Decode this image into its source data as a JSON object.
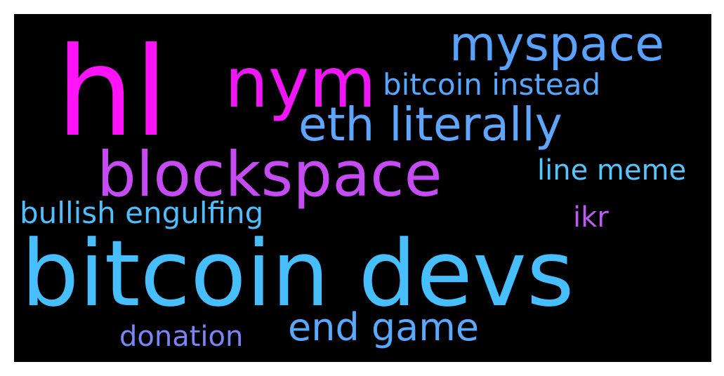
{
  "background_color": "#000000",
  "words": [
    {
      "key": "hl",
      "text": "hl",
      "color": "#ff13f7"
    },
    {
      "key": "nym",
      "text": "nym",
      "color": "#f017f7"
    },
    {
      "key": "myspace",
      "text": "myspace",
      "color": "#5aa2ff"
    },
    {
      "key": "bitcoin_instead",
      "text": "bitcoin instead",
      "color": "#57a6ff"
    },
    {
      "key": "eth_literally",
      "text": "eth literally",
      "color": "#5ea6ff"
    },
    {
      "key": "blockspace",
      "text": "blockspace",
      "color": "#c54bf2"
    },
    {
      "key": "line_meme",
      "text": "line meme",
      "color": "#54c6ff"
    },
    {
      "key": "bullish_engulfing",
      "text": "bullish engulfing",
      "color": "#4fbfff"
    },
    {
      "key": "ikr",
      "text": "ikr",
      "color": "#b95cf0"
    },
    {
      "key": "bitcoin_devs",
      "text": "bitcoin devs",
      "color": "#47bfff"
    },
    {
      "key": "end_game",
      "text": "end game",
      "color": "#5aa8ff"
    },
    {
      "key": "donation",
      "text": "donation",
      "color": "#7a86f5"
    }
  ]
}
